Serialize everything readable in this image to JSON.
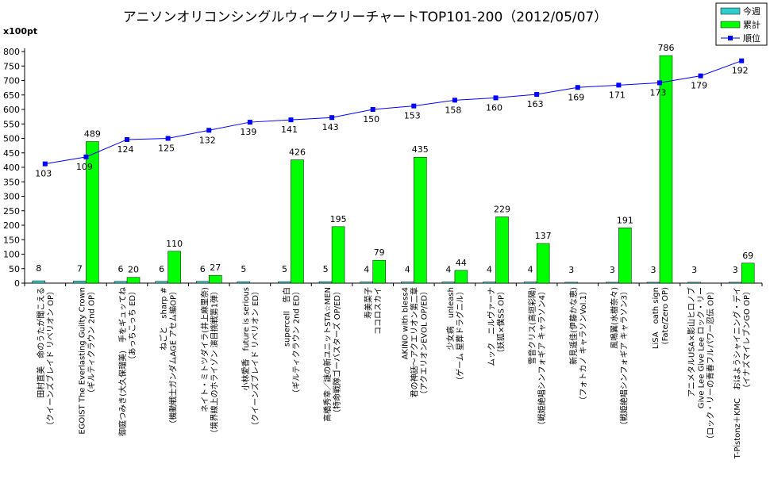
{
  "chart_data": {
    "type": "bar",
    "title": "アニソンオリコンシングルウィークリーチャートTOP101-200（2012/05/07）",
    "unit_label": "x100pt",
    "ylim": [
      0,
      800
    ],
    "yticks": [
      0,
      50,
      100,
      150,
      200,
      250,
      300,
      350,
      400,
      450,
      500,
      550,
      600,
      650,
      700,
      750,
      800
    ],
    "y2lim": [
      0,
      200
    ],
    "grid": false,
    "legend_position": "top-right",
    "categories": [
      [
        "田村直美　命のうたが聞こえる",
        "（クイーンズブレイド リベリオン OP）"
      ],
      [
        "EGOIST  The Everlasting Guilty Crown",
        "（ギルティクラウン 2nd OP）"
      ],
      [
        "御庭つみき(大久保瑠美)　手をギュッてね",
        "（あっちこっち ED）"
      ],
      [
        "ねごと　sharp #",
        "（機動戦士ガンダムAGE アセム編OP）"
      ],
      [
        "ネイト・ミトツダイラ(井上麻里奈)",
        "（境界線上のホライゾン 演目挑戦第1弾）"
      ],
      [
        "小林愛香　future is serious",
        "（クイーンズブレイド リベリオン ED）"
      ],
      [
        "supercell　告白",
        "（ギルティクラウン 2nd ED）"
      ],
      [
        "高橋秀幸／謎の新ユニットSTA☆MEN",
        "（特命戦隊ゴーバスターズ OP/ED）"
      ],
      [
        "寿美菜子",
        "ココロスカイ"
      ],
      [
        "AKINO with bless4",
        "君の神話～アクエリオン第二章",
        "（アクエリオンEVOL OP/ED）"
      ],
      [
        "少女病　unleash",
        "（ゲーム 星葬ドラグニル）"
      ],
      [
        "ムック　ニルヴァーナ",
        "（妖狐×僕SS OP）"
      ],
      [
        "雪音クリス(高垣彩陽)",
        "（戦姫絶唱シンフォギア キャラソン4）"
      ],
      [
        "新見遥佳(伊藤かな恵)",
        "（フォトカノ キャラソンVol.1）"
      ],
      [
        "風鳴翼(水樹奈々)",
        "（戦姫絶唱シンフォギア キャラソン3）"
      ],
      [
        "LiSA　oath sign",
        "(Fate/Zero OP)"
      ],
      [
        "アニメタルUSA×影山ヒロノブ",
        "Give Lee Give Lee ロック・リー",
        "（ロック・リーの青春フルパワー忍伝 OP）"
      ],
      [
        "T-Pistonz＋KMC　おはようシャイニング・デイ",
        "（イナズマイレブンGO OP）"
      ]
    ],
    "series": [
      {
        "name": "今週",
        "type": "bar",
        "color": "#33cccc",
        "values": [
          8,
          7,
          6,
          6,
          6,
          5,
          5,
          5,
          4,
          4,
          4,
          4,
          4,
          3,
          3,
          3,
          3,
          3
        ],
        "labels": [
          "8",
          "7",
          "6",
          "6",
          "6",
          "5",
          "5",
          "5",
          "4",
          "4",
          "4",
          "4",
          "4",
          "3",
          "3",
          "3",
          "3",
          "3"
        ]
      },
      {
        "name": "累計",
        "type": "bar",
        "color": "#00ff00",
        "values": [
          0,
          489,
          20,
          110,
          27,
          0,
          426,
          195,
          79,
          435,
          44,
          229,
          137,
          0,
          191,
          786,
          0,
          69
        ],
        "labels": [
          "",
          "489",
          "20",
          "110",
          "27",
          "",
          "426",
          "195",
          "79",
          "435",
          "44",
          "229",
          "137",
          "",
          "191",
          "786",
          "",
          "69"
        ]
      },
      {
        "name": "順位",
        "type": "line",
        "color": "#0000ff",
        "values": [
          103,
          109,
          124,
          125,
          132,
          139,
          141,
          143,
          150,
          153,
          158,
          160,
          163,
          169,
          171,
          173,
          179,
          192
        ],
        "labels": [
          "103",
          "109",
          "124",
          "125",
          "132",
          "139",
          "141",
          "143",
          "150",
          "153",
          "158",
          "160",
          "163",
          "169",
          "171",
          "173",
          "179",
          "192"
        ]
      }
    ]
  }
}
